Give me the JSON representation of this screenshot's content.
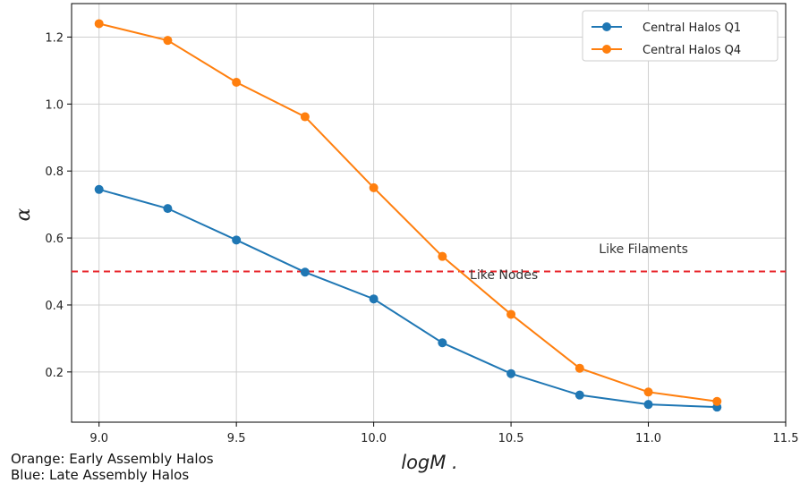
{
  "chart_data": {
    "type": "line",
    "title": "",
    "xlabel": "logM .",
    "ylabel": "α",
    "xlim": [
      8.9,
      11.5
    ],
    "ylim": [
      0.05,
      1.3
    ],
    "x_ticks": [
      9.0,
      9.5,
      10.0,
      10.5,
      11.0,
      11.5
    ],
    "x_tick_labels": [
      "9.0",
      "9.5",
      "10.0",
      "10.5",
      "11.0",
      "11.5"
    ],
    "y_ticks": [
      0.2,
      0.4,
      0.6,
      0.8,
      1.0,
      1.2
    ],
    "y_tick_labels": [
      "0.2",
      "0.4",
      "0.6",
      "0.8",
      "1.0",
      "1.2"
    ],
    "grid": true,
    "legend_position": "top-right",
    "x": [
      9.0,
      9.25,
      9.5,
      9.75,
      10.0,
      10.25,
      10.5,
      10.75,
      11.0,
      11.25
    ],
    "series": [
      {
        "name": "Central Halos Q1",
        "color": "#1f77b4",
        "values": [
          0.745,
          0.688,
          0.594,
          0.498,
          0.418,
          0.287,
          0.195,
          0.131,
          0.103,
          0.095
        ]
      },
      {
        "name": "Central Halos Q4",
        "color": "#ff7f0e",
        "values": [
          1.24,
          1.19,
          1.065,
          0.962,
          0.75,
          0.545,
          0.372,
          0.211,
          0.14,
          0.112
        ]
      }
    ],
    "reference_line": {
      "y": 0.5,
      "color": "#e8242a",
      "style": "dashed"
    },
    "annotations": [
      {
        "text": "Like Filaments",
        "x": 10.82,
        "y": 0.555
      },
      {
        "text": "Like Nodes",
        "x": 10.35,
        "y": 0.478
      }
    ]
  },
  "caption": {
    "line1": "Orange: Early Assembly Halos",
    "line2": "Blue: Late Assembly Halos"
  }
}
